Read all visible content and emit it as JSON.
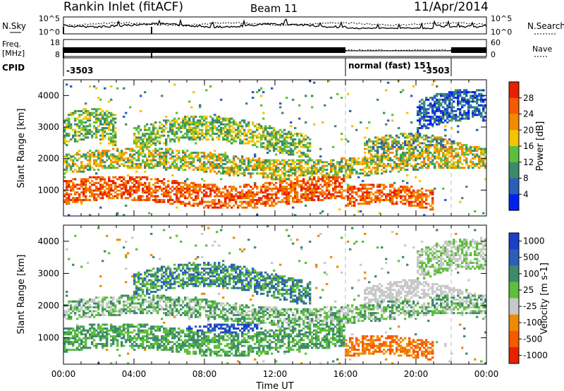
{
  "header": {
    "title": "Rankin Inlet (fitACF)",
    "beam": "Beam 11",
    "date": "11/Apr/2014"
  },
  "noise_panel": {
    "left_label": "N.Sky",
    "left_ticks": [
      "10^5",
      "10^0"
    ],
    "right_label": "N.Search",
    "right_ticks": [
      "10^5",
      "10^0"
    ]
  },
  "freq_panel": {
    "left_label_1": "Freq.",
    "left_label_2": "[MHz]",
    "left_ticks": [
      "18",
      "8"
    ],
    "right_label": "Nave",
    "right_ticks": [
      "60",
      "0"
    ]
  },
  "cpid_panel": {
    "label": "CPID",
    "segments": [
      {
        "text": "-3503",
        "start_hour": 0
      },
      {
        "text": "normal (fast) 151",
        "start_hour": 16
      },
      {
        "text": "-3503",
        "start_hour": 22
      }
    ]
  },
  "colors": {
    "power": [
      "#0022ee",
      "#2a5fb8",
      "#3d8a6a",
      "#5cbf3c",
      "#f5c400",
      "#f08a00",
      "#f55a00",
      "#e82000"
    ],
    "velocity": [
      "#e82000",
      "#f55a00",
      "#f08a00",
      "#c8c8c8",
      "#5cbf3c",
      "#3d8a6a",
      "#2a5fb8",
      "#1a3fc8"
    ]
  },
  "chart_data": [
    {
      "type": "heatmap",
      "panel": "power",
      "ylabel": "Slant Range [km]",
      "xlabel": "",
      "xlim": [
        0,
        24
      ],
      "ylim": [
        180,
        4500
      ],
      "yticks": [
        1000,
        2000,
        3000,
        4000
      ],
      "colorbar": {
        "label": "Power [dB]",
        "ticks": [
          "4",
          "8",
          "12",
          "16",
          "20",
          "24",
          "28"
        ],
        "range": [
          0,
          32
        ]
      },
      "markers_hours": [
        16,
        22
      ]
    },
    {
      "type": "heatmap",
      "panel": "velocity",
      "ylabel": "Slant Range [km]",
      "xlabel": "Time UT",
      "xlim": [
        0,
        24
      ],
      "ylim": [
        180,
        4500
      ],
      "yticks": [
        1000,
        2000,
        3000,
        4000
      ],
      "xticks": [
        "00:00",
        "04:00",
        "08:00",
        "12:00",
        "16:00",
        "20:00",
        "00:00"
      ],
      "colorbar": {
        "label": "Velocity [m s-1]",
        "ticks": [
          "1000",
          "500",
          "100",
          "25",
          "-25",
          "-100",
          "-500",
          "-1000"
        ]
      },
      "markers_hours": [
        16,
        22
      ]
    }
  ]
}
